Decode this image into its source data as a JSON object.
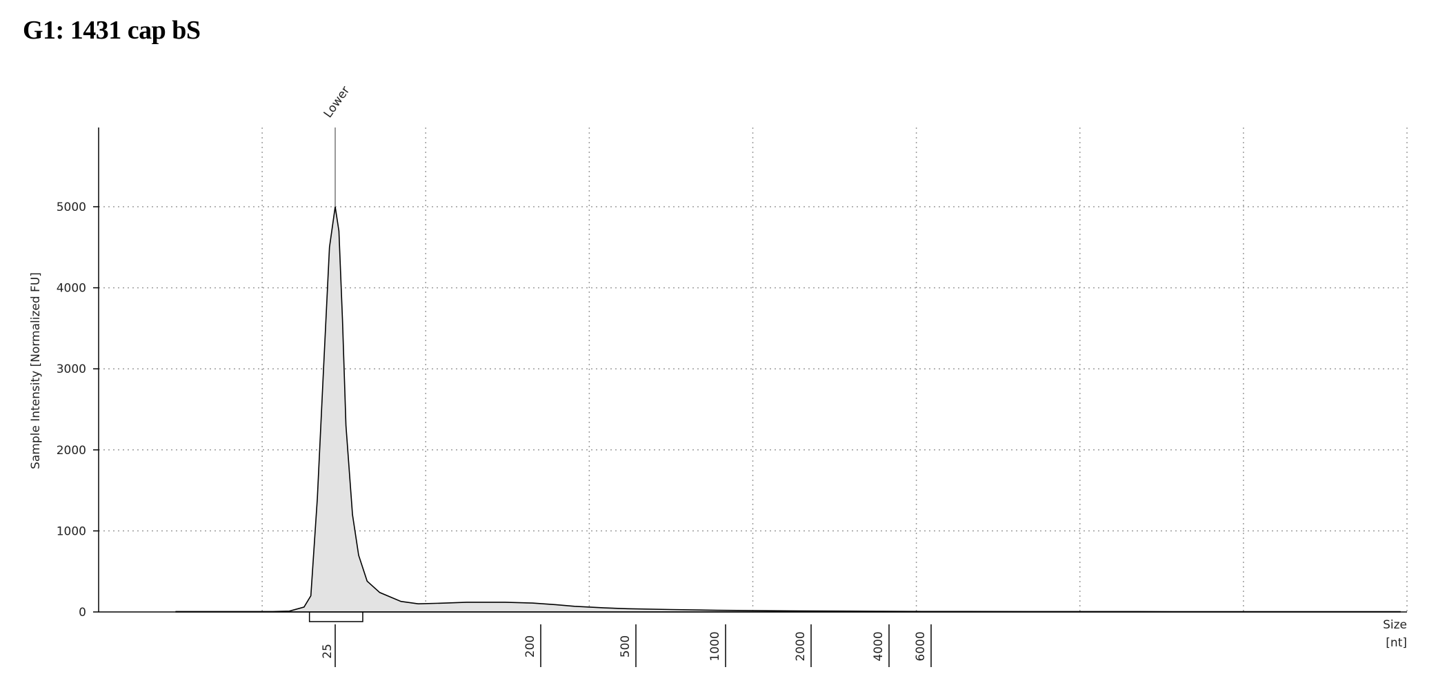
{
  "title": "G1: 1431 cap bS",
  "chart_data": {
    "type": "area",
    "ylabel": "Sample Intensity [Normalized FU]",
    "xlabel_line1": "Size",
    "xlabel_line2": "[nt]",
    "x_scale": "log",
    "ylim": [
      0,
      6000
    ],
    "yticks": [
      0,
      1000,
      2000,
      3000,
      4000,
      5000
    ],
    "ytick_labels": [
      "0",
      "1000",
      "2000",
      "3000",
      "4000",
      "5000"
    ],
    "size_ladder": [
      {
        "label": "25",
        "size": 25
      },
      {
        "label": "200",
        "size": 200
      },
      {
        "label": "500",
        "size": 500
      },
      {
        "label": "1000",
        "size": 1000
      },
      {
        "label": "2000",
        "size": 2000
      },
      {
        "label": "4000",
        "size": 4000
      },
      {
        "label": "6000",
        "size": 6000
      }
    ],
    "peak_marker": {
      "label": "Lower",
      "size": 25
    },
    "grid": true,
    "fill_color": "#e3e3e3",
    "line_color": "#000000",
    "series": [
      {
        "x": [
          8,
          12,
          14,
          16,
          18,
          20,
          21,
          22,
          23,
          24,
          25,
          26,
          27,
          28,
          30,
          32,
          35,
          40,
          50,
          60,
          80,
          100,
          150,
          200,
          250,
          300,
          400,
          500,
          700,
          1000,
          1500,
          2000,
          3000,
          4000,
          6000,
          10000,
          20000,
          60000
        ],
        "y": [
          5,
          5,
          5,
          5,
          10,
          60,
          200,
          1400,
          3000,
          4500,
          5000,
          4700,
          3600,
          2300,
          1200,
          700,
          380,
          240,
          130,
          100,
          110,
          120,
          120,
          110,
          90,
          70,
          50,
          40,
          30,
          20,
          15,
          12,
          10,
          8,
          6,
          5,
          4,
          3
        ]
      }
    ]
  }
}
